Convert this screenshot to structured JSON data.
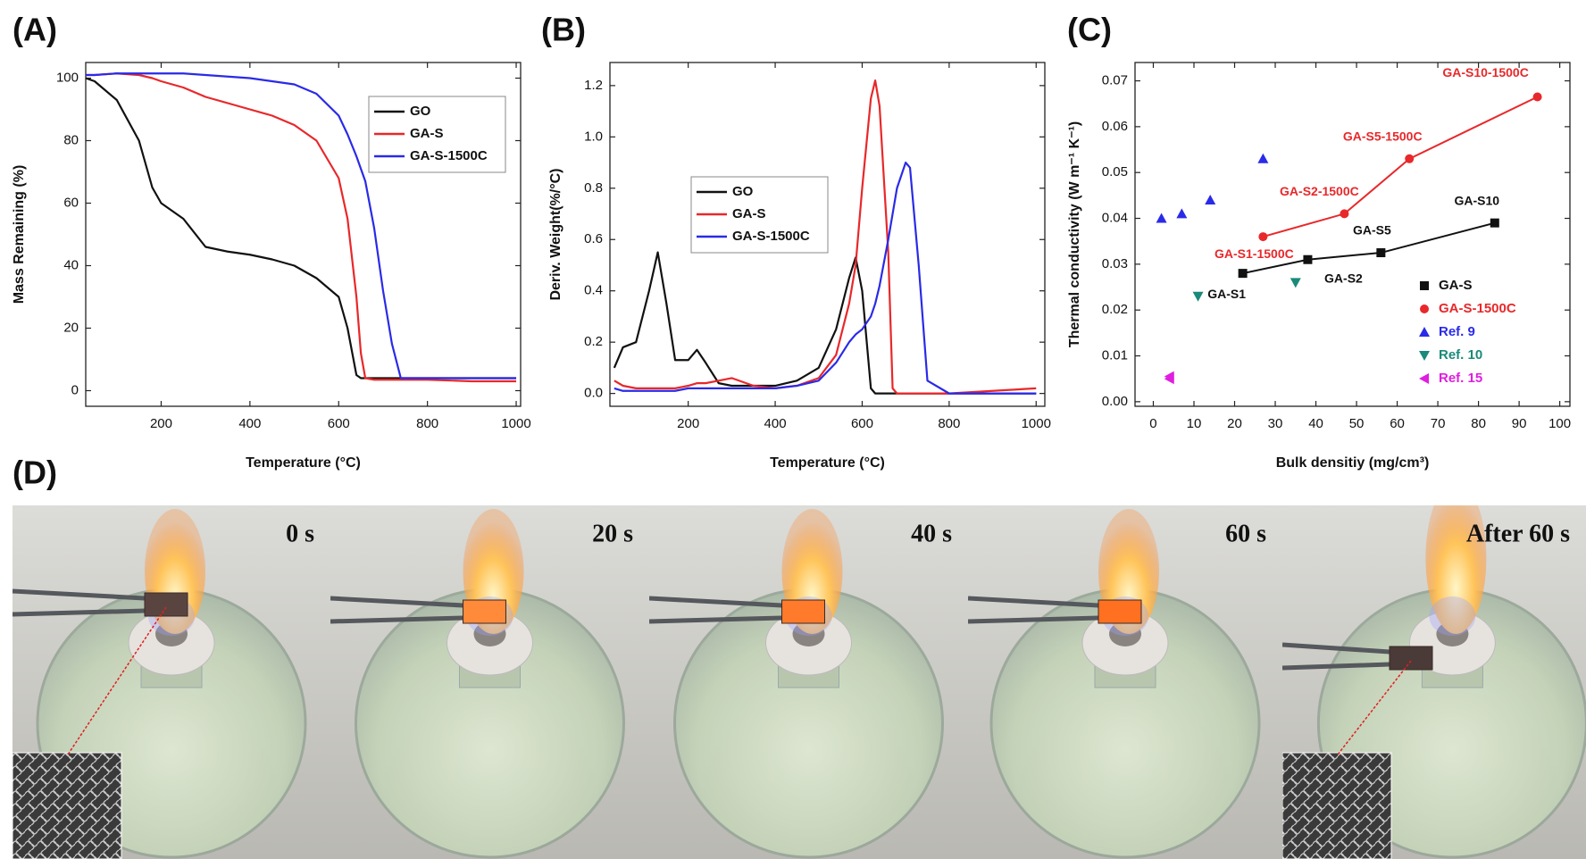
{
  "panel_labels": [
    "(A)",
    "(B)",
    "(C)",
    "(D)"
  ],
  "photo_labels": [
    "0 s",
    "20 s",
    "40 s",
    "60 s",
    "After 60 s"
  ],
  "chart_data": [
    {
      "type": "line",
      "xlabel": "Temperature (°C)",
      "ylabel": "Mass Remaining (%)",
      "xlim": [
        30,
        1010
      ],
      "ylim": [
        -5,
        105
      ],
      "xticks": [
        200,
        400,
        600,
        800,
        1000
      ],
      "yticks": [
        0,
        20,
        40,
        60,
        80,
        100
      ],
      "legend": "upper right",
      "x": [
        30,
        50,
        100,
        150,
        180,
        200,
        250,
        300,
        350,
        400,
        450,
        500,
        550,
        600,
        620,
        640,
        650,
        660,
        680,
        700,
        720,
        740,
        800,
        900,
        1000
      ],
      "series": [
        {
          "name": "GO",
          "color": "#111111",
          "values": [
            100,
            99,
            93,
            80,
            65,
            60,
            55,
            46,
            44.5,
            43.5,
            42,
            40,
            36,
            30,
            20,
            5,
            4,
            4,
            4,
            4,
            4,
            4,
            4,
            4,
            4
          ]
        },
        {
          "name": "GA-S",
          "color": "#e8282a",
          "values": [
            101,
            101,
            101.5,
            101,
            100,
            99,
            97,
            94,
            92,
            90,
            88,
            85,
            80,
            68,
            55,
            30,
            12,
            4,
            3.5,
            3.5,
            3.5,
            3.5,
            3.5,
            3,
            3
          ]
        },
        {
          "name": "GA-S-1500C",
          "color": "#2a2ae8",
          "values": [
            101,
            101,
            101.5,
            101.5,
            101.5,
            101.5,
            101.5,
            101,
            100.5,
            100,
            99,
            98,
            95,
            88,
            82,
            75,
            71,
            67,
            52,
            32,
            15,
            4,
            4,
            4,
            4
          ]
        }
      ]
    },
    {
      "type": "line",
      "xlabel": "Temperature (°C)",
      "ylabel": "Deriv. Weight(%/°C)",
      "xlim": [
        20,
        1020
      ],
      "ylim": [
        -0.05,
        1.29
      ],
      "xticks": [
        200,
        400,
        600,
        800,
        1000
      ],
      "yticks": [
        {
          "value": 0,
          "label": "0.0"
        },
        0.2,
        0.4,
        0.6,
        0.8,
        {
          "value": 1,
          "label": "1.0"
        },
        1.2
      ],
      "legend": "upper left",
      "x": [
        30,
        50,
        80,
        110,
        130,
        150,
        170,
        200,
        220,
        240,
        270,
        300,
        350,
        400,
        450,
        500,
        540,
        570,
        585,
        600,
        620,
        630,
        640,
        660,
        670,
        680,
        700,
        710,
        730,
        750,
        800,
        900,
        1000
      ],
      "series": [
        {
          "name": "GO",
          "color": "#111111",
          "values": [
            0.1,
            0.18,
            0.2,
            0.4,
            0.55,
            0.35,
            0.13,
            0.13,
            0.17,
            0.12,
            0.04,
            0.03,
            0.03,
            0.03,
            0.05,
            0.1,
            0.25,
            0.45,
            0.53,
            0.4,
            0.02,
            0,
            0,
            0,
            0,
            0,
            0,
            0,
            0,
            0,
            0,
            0,
            0
          ]
        },
        {
          "name": "GA-S",
          "color": "#e8282a",
          "values": [
            0.05,
            0.03,
            0.02,
            0.02,
            0.02,
            0.02,
            0.02,
            0.03,
            0.04,
            0.04,
            0.05,
            0.06,
            0.03,
            0.02,
            0.03,
            0.06,
            0.15,
            0.35,
            0.5,
            0.8,
            1.15,
            1.22,
            1.12,
            0.55,
            0.02,
            0,
            0,
            0,
            0,
            0,
            0,
            0.01,
            0.02
          ]
        },
        {
          "name": "GA-S-1500C",
          "color": "#2a2ae8",
          "values": [
            0.02,
            0.01,
            0.01,
            0.01,
            0.01,
            0.01,
            0.01,
            0.02,
            0.02,
            0.02,
            0.02,
            0.02,
            0.02,
            0.02,
            0.03,
            0.05,
            0.12,
            0.2,
            0.23,
            0.25,
            0.3,
            0.35,
            0.42,
            0.6,
            0.7,
            0.8,
            0.9,
            0.88,
            0.5,
            0.05,
            0,
            0,
            0
          ]
        }
      ]
    },
    {
      "type": "scatter",
      "xlabel": "Bulk densitiy (mg/cm³)",
      "ylabel": "Thermal conductivity (W m⁻¹ K⁻¹)",
      "xlim": [
        -4.5,
        102.5
      ],
      "ylim": [
        -0.001,
        0.074
      ],
      "xticks": [
        0,
        10,
        20,
        30,
        40,
        50,
        60,
        70,
        80,
        90,
        100
      ],
      "yticks": [
        {
          "value": 0,
          "label": "0.00"
        },
        0.01,
        0.02,
        0.03,
        0.04,
        0.05,
        0.06,
        0.07
      ],
      "legend": "lower right",
      "series": [
        {
          "name": "GA-S",
          "color": "#111111",
          "marker": "square",
          "connected": true,
          "x": [
            22,
            38,
            56,
            84
          ],
          "values": [
            0.028,
            0.031,
            0.0325,
            0.039
          ],
          "point_labels": [
            "GA-S1",
            "GA-S2",
            "GA-S5",
            "GA-S10"
          ]
        },
        {
          "name": "GA-S-1500C",
          "color": "#e8282a",
          "marker": "circle",
          "connected": true,
          "x": [
            27,
            47,
            63,
            94.5
          ],
          "values": [
            0.036,
            0.041,
            0.053,
            0.0665
          ],
          "point_labels": [
            "GA-S1-1500C",
            "GA-S2-1500C",
            "GA-S5-1500C",
            "GA-S10-1500C"
          ]
        },
        {
          "name": "Ref. 9",
          "color": "#2a2ae8",
          "marker": "triangle-up",
          "x": [
            2,
            7,
            14,
            27
          ],
          "values": [
            0.04,
            0.041,
            0.044,
            0.053
          ]
        },
        {
          "name": "Ref. 10",
          "color": "#1a8a7a",
          "marker": "triangle-down",
          "x": [
            11,
            35
          ],
          "values": [
            0.023,
            0.026
          ]
        },
        {
          "name": "Ref. 15",
          "color": "#e01ee0",
          "marker": "triangle-left",
          "x": [
            4,
            4
          ],
          "values": [
            0.0055,
            0.005
          ]
        }
      ]
    }
  ]
}
